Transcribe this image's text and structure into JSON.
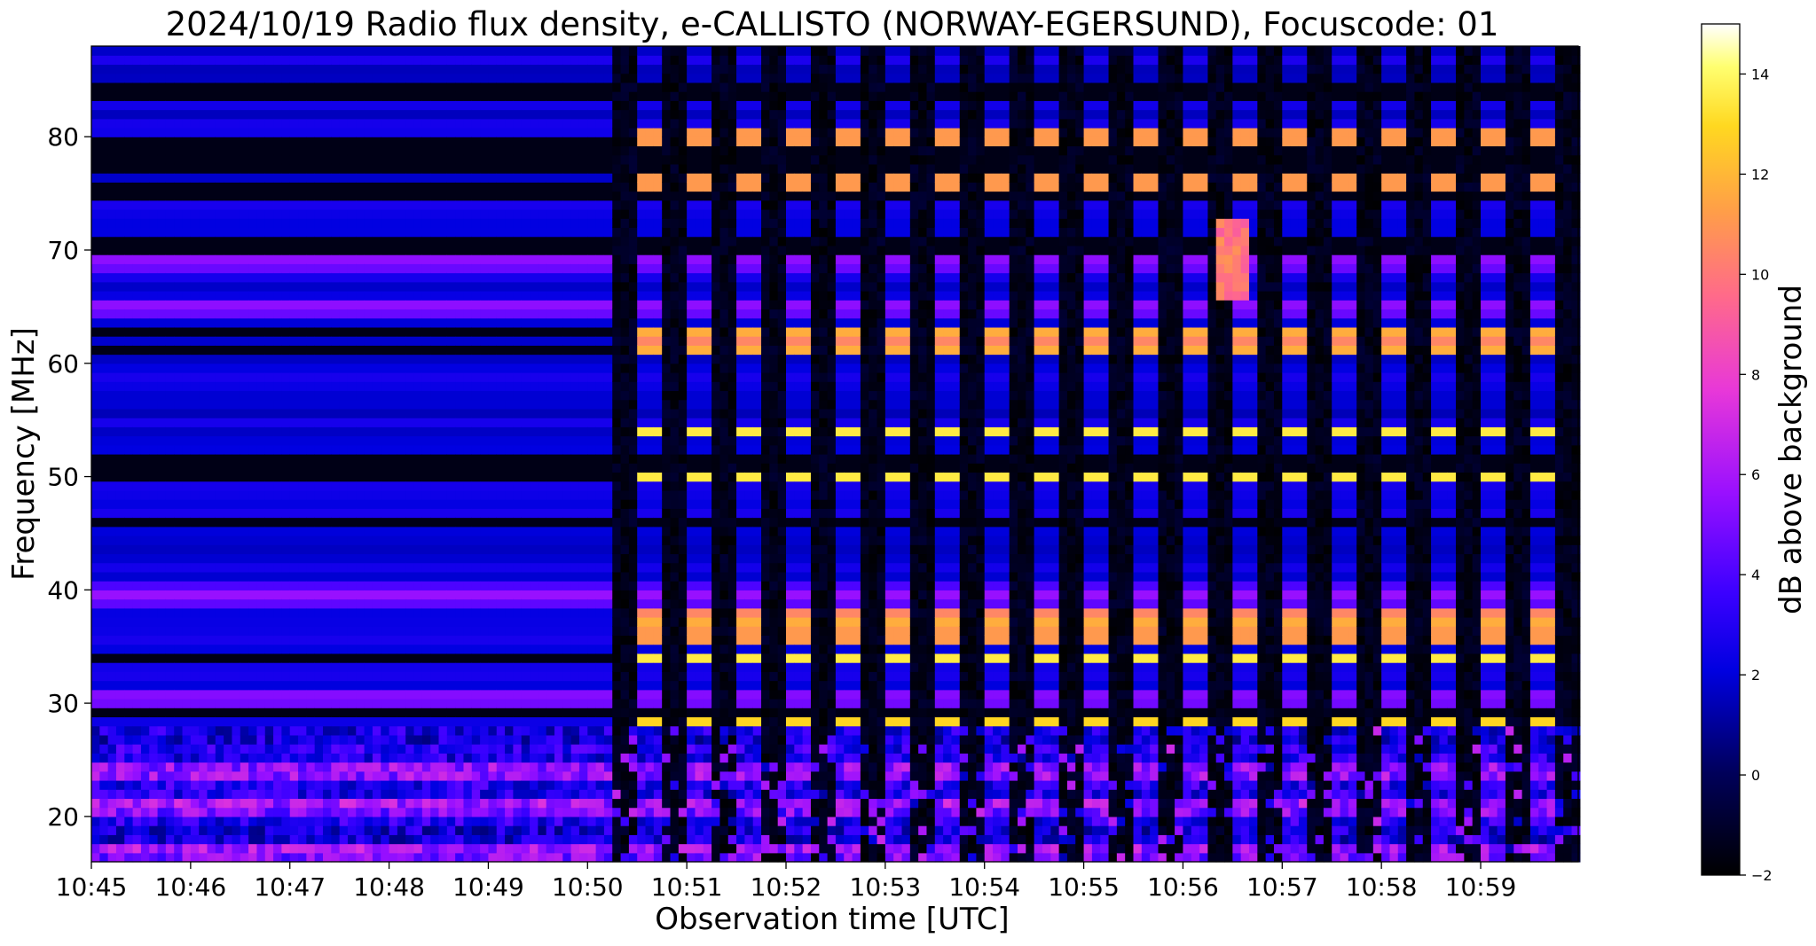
{
  "chart_data": {
    "type": "heatmap",
    "title": "2024/10/19  Radio flux density, e-CALLISTO (NORWAY-EGERSUND), Focuscode: 01",
    "xlabel": "Observation time [UTC]",
    "ylabel": "Frequency [MHz]",
    "x_ticks": [
      "10:45",
      "10:46",
      "10:47",
      "10:48",
      "10:49",
      "10:50",
      "10:51",
      "10:52",
      "10:53",
      "10:54",
      "10:55",
      "10:56",
      "10:57",
      "10:58",
      "10:59"
    ],
    "x_range": [
      "10:45:00",
      "10:59:59"
    ],
    "y_ticks": [
      20,
      30,
      40,
      50,
      60,
      70,
      80
    ],
    "ylim": [
      16,
      88
    ],
    "colorbar": {
      "label": "dB above background",
      "ticks": [
        -2,
        0,
        2,
        4,
        6,
        8,
        10,
        12,
        14
      ],
      "range": [
        -2,
        15
      ],
      "colormap": "gnuplot2"
    },
    "features": {
      "regime_change_time": "10:50:15",
      "pulsed_period_seconds": 30,
      "persistent_bands_mhz": [
        17,
        21,
        24,
        30.5,
        39.5,
        65,
        69
      ],
      "pulsed_bright_bands_mhz": [
        28.5,
        34,
        36,
        37.5,
        50,
        54,
        61.5,
        62.5,
        76,
        80
      ],
      "burst": {
        "time": "10:56:30",
        "freq_range_mhz": [
          66,
          73
        ]
      }
    }
  }
}
